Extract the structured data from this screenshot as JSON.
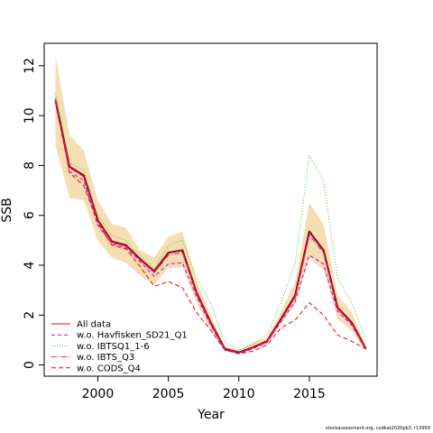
{
  "chart_data": {
    "type": "line",
    "xlabel": "Year",
    "ylabel": "SSB",
    "xlim": [
      1996.2,
      2019.8
    ],
    "ylim": [
      -0.45,
      12.9
    ],
    "xticks": [
      2000,
      2005,
      2010,
      2015
    ],
    "yticks": [
      0,
      2,
      4,
      6,
      8,
      10,
      12
    ],
    "x": [
      1997,
      1998,
      1999,
      2000,
      2001,
      2002,
      2003,
      2004,
      2005,
      2006,
      2007,
      2008,
      2009,
      2010,
      2011,
      2012,
      2013,
      2014,
      2015,
      2016,
      2017,
      2018,
      2019
    ],
    "band": {
      "color": "#f5deb3",
      "lower": [
        8.8,
        6.7,
        6.6,
        5.0,
        4.3,
        4.1,
        3.6,
        3.2,
        3.9,
        3.9,
        2.5,
        1.4,
        0.58,
        0.45,
        0.65,
        0.85,
        1.65,
        2.45,
        4.3,
        3.8,
        1.85,
        1.35,
        0.55
      ],
      "upper": [
        12.4,
        9.2,
        8.6,
        6.6,
        5.65,
        5.5,
        4.6,
        4.3,
        5.15,
        5.35,
        3.4,
        2.0,
        0.75,
        0.6,
        0.9,
        1.1,
        2.15,
        3.35,
        6.5,
        5.65,
        2.8,
        2.1,
        0.8
      ]
    },
    "series": [
      {
        "name": "All data",
        "color": "#000000",
        "dash": "solid",
        "width": 2,
        "values": [
          10.6,
          7.95,
          7.6,
          5.8,
          4.95,
          4.8,
          4.25,
          3.75,
          4.5,
          4.6,
          2.9,
          1.7,
          0.65,
          0.5,
          0.7,
          0.95,
          1.85,
          2.8,
          5.35,
          4.6,
          2.3,
          1.7,
          0.65
        ]
      },
      {
        "name": "All data",
        "color": "#ff0000",
        "dash": "solid",
        "width": 1,
        "values": [
          10.6,
          7.95,
          7.6,
          5.8,
          4.95,
          4.8,
          4.25,
          3.75,
          4.5,
          4.6,
          2.9,
          1.7,
          0.65,
          0.5,
          0.7,
          0.95,
          1.85,
          2.8,
          5.35,
          4.6,
          2.3,
          1.7,
          0.65
        ]
      },
      {
        "name": "w.o. Havfisken_SD21_Q1",
        "color": "#cc00cc",
        "dash": "4,3",
        "width": 1,
        "values": [
          10.5,
          7.75,
          7.4,
          5.6,
          4.85,
          4.7,
          4.15,
          3.55,
          4.05,
          4.1,
          2.75,
          1.6,
          0.6,
          0.45,
          0.65,
          0.9,
          1.75,
          2.55,
          4.4,
          4.05,
          2.15,
          1.6,
          0.6
        ]
      },
      {
        "name": "w.o. IBTSQ1_1-6",
        "color": "#33cc33",
        "dash": "1,2",
        "width": 1,
        "values": [
          10.9,
          8.1,
          7.8,
          6.0,
          5.2,
          5.0,
          4.4,
          3.85,
          4.8,
          5.0,
          3.5,
          2.5,
          0.9,
          0.6,
          0.85,
          1.2,
          2.5,
          4.1,
          8.4,
          7.4,
          3.5,
          2.5,
          1.0
        ]
      },
      {
        "name": "w.o. IBTS_Q3",
        "color": "#ff1493",
        "dash": "6,2,1,2",
        "width": 1,
        "values": [
          10.55,
          7.9,
          7.55,
          5.75,
          4.9,
          4.75,
          4.2,
          3.7,
          4.4,
          4.5,
          2.85,
          1.65,
          0.65,
          0.5,
          0.68,
          0.92,
          1.8,
          2.7,
          5.2,
          4.5,
          2.25,
          1.65,
          0.63
        ]
      },
      {
        "name": "w.o. CODS_Q4",
        "color": "#ff0000",
        "dash": "5,3",
        "width": 1,
        "values": [
          10.7,
          7.7,
          7.2,
          5.7,
          4.8,
          4.65,
          3.95,
          3.15,
          3.35,
          3.1,
          2.1,
          1.4,
          0.6,
          0.45,
          0.55,
          0.8,
          1.5,
          1.8,
          2.5,
          2.0,
          1.2,
          0.95,
          0.65
        ]
      }
    ],
    "legend": {
      "position": "bottom-left",
      "entries": [
        {
          "label": "All data",
          "color": "#ff0000",
          "dash": "solid"
        },
        {
          "label": "w.o. Havfisken_SD21_Q1",
          "color": "#cc00cc",
          "dash": "4,3"
        },
        {
          "label": "w.o. IBTSQ1_1-6",
          "color": "#33cc33",
          "dash": "1,2"
        },
        {
          "label": "w.o. IBTS_Q3",
          "color": "#ff1493",
          "dash": "6,2,1,2"
        },
        {
          "label": "w.o. CODS_Q4",
          "color": "#ff0000",
          "dash": "5,3"
        }
      ]
    }
  },
  "credit": "stockassessment.org, codkat2020pb3, r13959"
}
